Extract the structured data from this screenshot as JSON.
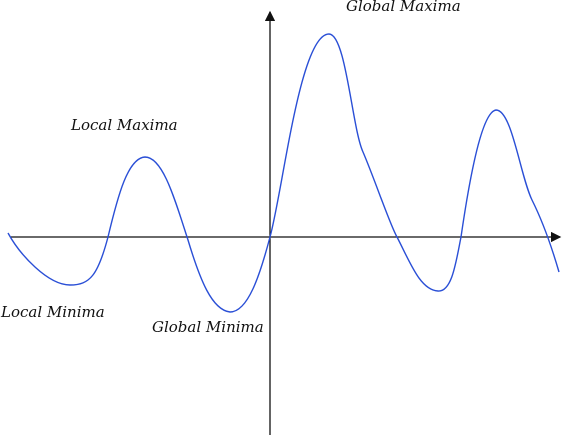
{
  "labels": {
    "global_maxima": "Global Maxima",
    "local_maxima": "Local Maxima",
    "local_minima": "Local Minima",
    "global_minima": "Global Minima"
  },
  "colors": {
    "curve": "#2a4fd6",
    "axes": "#111111"
  }
}
